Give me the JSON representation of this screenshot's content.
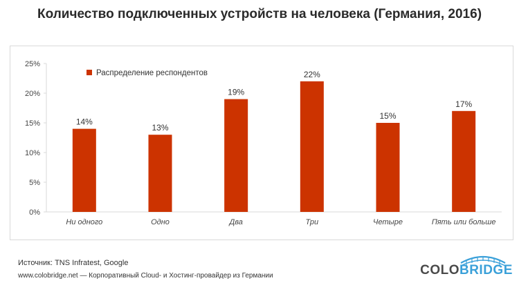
{
  "title": "Количество подключенных устройств на человека (Германия, 2016)",
  "footer": {
    "source": "Источник: TNS  Infratest,  Google",
    "site": "www.colobridge.net — Корпоративный Cloud- и Хостинг-провайдер из Германии"
  },
  "logo": {
    "part1": "COLO",
    "part2": "BRIDGE"
  },
  "colors": {
    "bar": "#cc3300",
    "grid": "#d9d9d9",
    "text": "#444444",
    "logo_blue": "#3aa0d9"
  },
  "chart_data": {
    "type": "bar",
    "categories": [
      "Ни одного",
      "Одно",
      "Два",
      "Три",
      "Четыре",
      "Пять или больше"
    ],
    "series": [
      {
        "name": "Распределение респондентов",
        "values": [
          14,
          13,
          19,
          22,
          15,
          17
        ]
      }
    ],
    "data_labels": [
      "14%",
      "13%",
      "19%",
      "22%",
      "15%",
      "17%"
    ],
    "y_ticks": [
      "0%",
      "5%",
      "10%",
      "15%",
      "20%",
      "25%"
    ],
    "ylim": [
      0,
      25
    ],
    "grid": false,
    "legend": "top-left"
  }
}
